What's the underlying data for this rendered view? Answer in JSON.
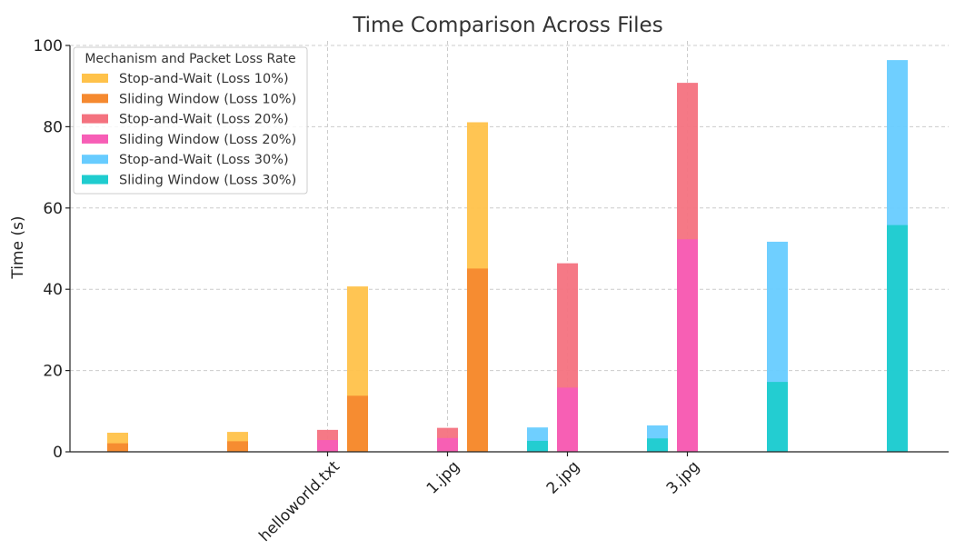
{
  "chart_data": {
    "type": "bar",
    "title": "Time Comparison Across Files",
    "xlabel": "",
    "ylabel": "Time (s)",
    "ylim": [
      0,
      100
    ],
    "yticks": [
      0,
      20,
      40,
      60,
      80,
      100
    ],
    "grid": true,
    "legend_placement": "top-left",
    "legend_title": "Mechanism and Packet Loss Rate",
    "xtick_labels": [
      "helloworld.txt",
      "1.jpg",
      "2.jpg",
      "3.jpg"
    ],
    "series": [
      {
        "name": "Stop-and-Wait (Loss 10%)",
        "color": "#FFC24A",
        "bars": [
          {
            "value": 4.7,
            "base": 0
          },
          {
            "value": 4.9,
            "base": 0
          },
          {
            "value": 40.7,
            "base": 0
          },
          {
            "value": 81.1,
            "base": 0
          }
        ]
      },
      {
        "name": "Sliding Window (Loss 10%)",
        "color": "#F5892F",
        "bars": [
          {
            "value": 2.1,
            "base": 0
          },
          {
            "value": 2.6,
            "base": 0
          },
          {
            "value": 13.8,
            "base": 0
          },
          {
            "value": 45.1,
            "base": 0
          }
        ]
      },
      {
        "name": "Stop-and-Wait (Loss 20%)",
        "color": "#F4727F",
        "bars": [
          {
            "value": 5.4,
            "base": 0
          },
          {
            "value": 5.9,
            "base": 0
          },
          {
            "value": 46.4,
            "base": 0
          },
          {
            "value": 90.8,
            "base": 0
          }
        ]
      },
      {
        "name": "Sliding Window (Loss 20%)",
        "color": "#F75EB6",
        "bars": [
          {
            "value": 2.9,
            "base": 0
          },
          {
            "value": 3.4,
            "base": 0
          },
          {
            "value": 15.8,
            "base": 0
          },
          {
            "value": 52.3,
            "base": 0
          }
        ]
      },
      {
        "name": "Stop-and-Wait (Loss 30%)",
        "color": "#67CCFF",
        "bars": [
          {
            "value": 6.0,
            "base": 0
          },
          {
            "value": 6.5,
            "base": 0
          },
          {
            "value": 51.7,
            "base": 0
          },
          {
            "value": 96.4,
            "base": 0
          }
        ]
      },
      {
        "name": "Sliding Window (Loss 30%)",
        "color": "#1FCCCF",
        "bars": [
          {
            "value": 2.7,
            "base": 0
          },
          {
            "value": 3.3,
            "base": 0
          },
          {
            "value": 17.2,
            "base": 0
          },
          {
            "value": 55.8,
            "base": 0
          }
        ]
      }
    ]
  }
}
